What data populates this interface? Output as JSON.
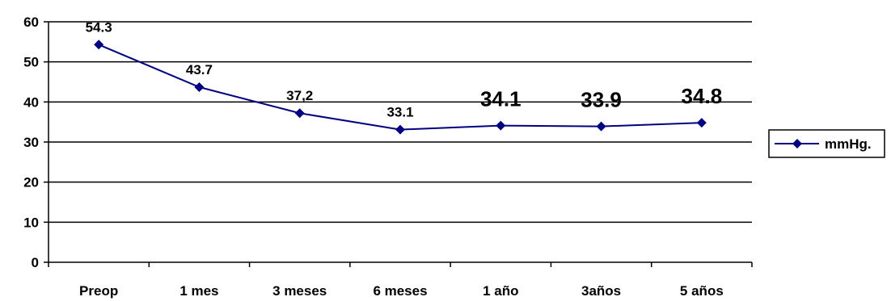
{
  "chart_data": {
    "type": "line",
    "categories": [
      "Preop",
      "1 mes",
      "3 meses",
      "6 meses",
      "1 año",
      "3años",
      "5 años"
    ],
    "series": [
      {
        "name": "mmHg.",
        "values": [
          54.3,
          43.7,
          37.2,
          33.1,
          34.1,
          33.9,
          34.8
        ],
        "labels": [
          "54.3",
          "43.7",
          "37,2",
          "33.1",
          "34.1",
          "33.9",
          "34.8"
        ]
      }
    ],
    "y_ticks": [
      "0",
      "10",
      "20",
      "30",
      "40",
      "50",
      "60"
    ],
    "ylim": [
      0,
      60
    ],
    "grid": true,
    "legend": "right",
    "colors": {
      "series": "#000080",
      "grid": "#000000",
      "axis": "#000000"
    }
  }
}
